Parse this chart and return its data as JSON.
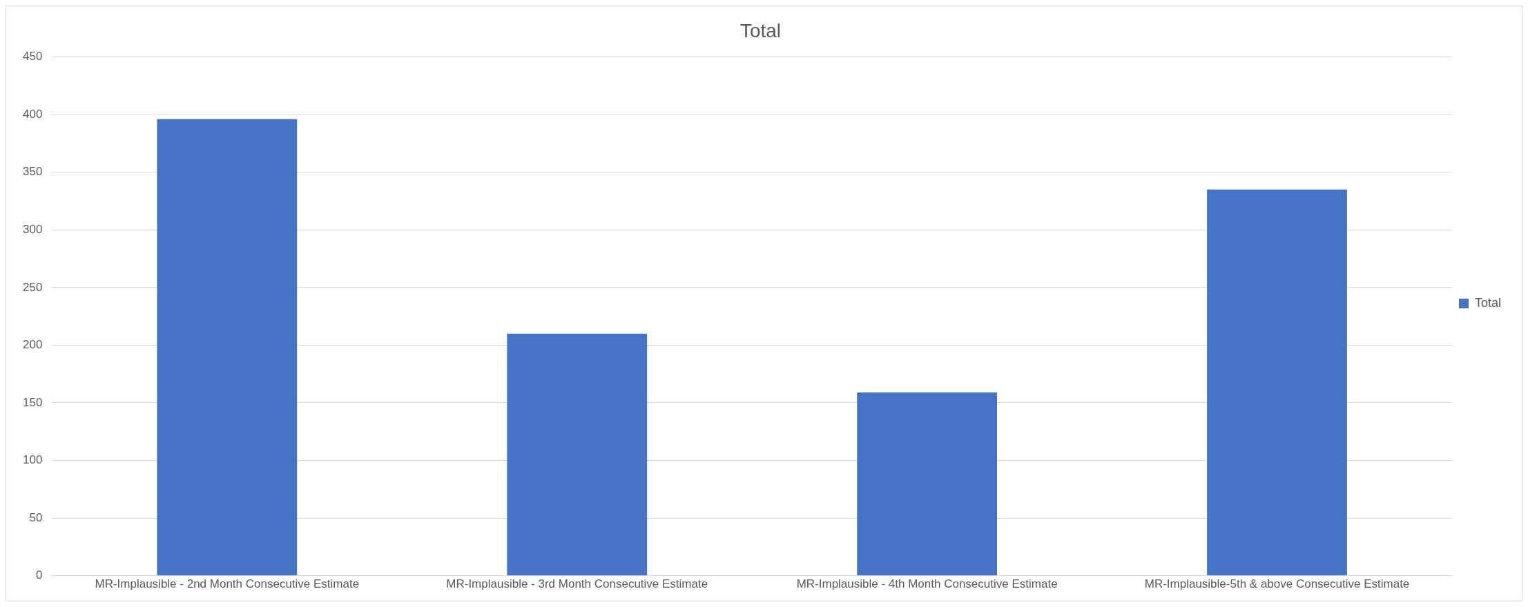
{
  "chart_data": {
    "type": "bar",
    "title": "Total",
    "categories": [
      "MR-Implausible - 2nd Month Consecutive Estimate",
      "MR-Implausible - 3rd Month Consecutive Estimate",
      "MR-Implausible - 4th Month Consecutive Estimate",
      "MR-Implausible-5th & above Consecutive Estimate"
    ],
    "series": [
      {
        "name": "Total",
        "color": "#4472c4",
        "values": [
          396,
          210,
          159,
          335
        ]
      }
    ],
    "ylim": [
      0,
      450
    ],
    "yticks": [
      0,
      50,
      100,
      150,
      200,
      250,
      300,
      350,
      400,
      450
    ],
    "grid": "y",
    "legend": "right"
  }
}
